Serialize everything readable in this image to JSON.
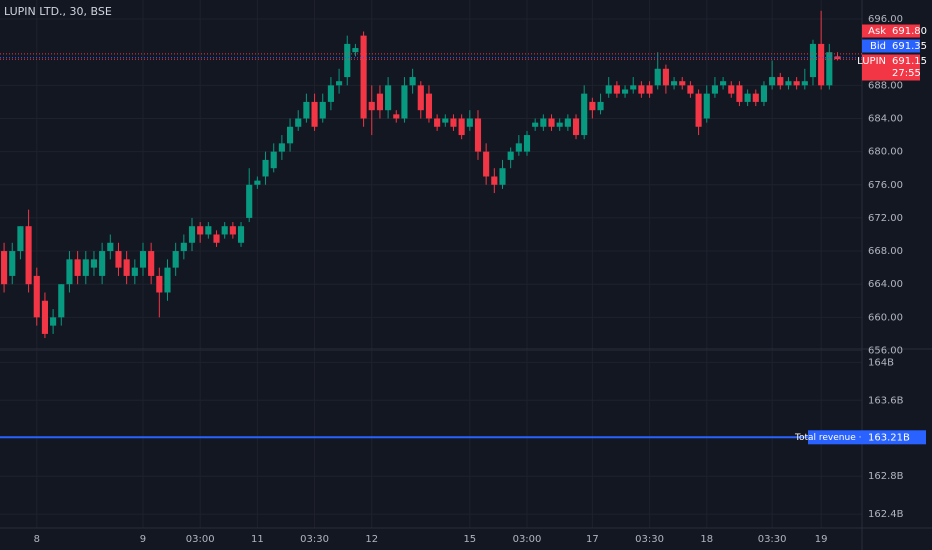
{
  "chart_data": {
    "type": "candlestick",
    "title": "LUPIN LTD., 30, BSE",
    "up_color": "#089981",
    "down_color": "#f23645",
    "grid": true,
    "xlim": [
      -0.5,
      105
    ],
    "xticks": [
      {
        "value": 4,
        "label": "8"
      },
      {
        "value": 17,
        "label": "9"
      },
      {
        "value": 24,
        "label": "03:00"
      },
      {
        "value": 31,
        "label": "11"
      },
      {
        "value": 38,
        "label": "03:30"
      },
      {
        "value": 45,
        "label": "12"
      },
      {
        "value": 57,
        "label": "15"
      },
      {
        "value": 64,
        "label": "03:00"
      },
      {
        "value": 72,
        "label": "17"
      },
      {
        "value": 79,
        "label": "03:30"
      },
      {
        "value": 86,
        "label": "18"
      },
      {
        "value": 94,
        "label": "03:30"
      },
      {
        "value": 100,
        "label": "19"
      }
    ],
    "ylim": [
      656.3,
      698.3
    ],
    "yticks": [
      {
        "value": 656,
        "label": "656.00"
      },
      {
        "value": 660,
        "label": "660.00"
      },
      {
        "value": 664,
        "label": "664.00"
      },
      {
        "value": 668,
        "label": "668.00"
      },
      {
        "value": 672,
        "label": "672.00"
      },
      {
        "value": 676,
        "label": "676.00"
      },
      {
        "value": 680,
        "label": "680.00"
      },
      {
        "value": 684,
        "label": "684.00"
      },
      {
        "value": 688,
        "label": "688.00"
      },
      {
        "value": 696,
        "label": "696.00"
      }
    ],
    "open": [
      668,
      665,
      668,
      671,
      665,
      662,
      659,
      660,
      664,
      667,
      665,
      666,
      665,
      668,
      668,
      667,
      665,
      666,
      668,
      665,
      663,
      666,
      668,
      669,
      671,
      670,
      670,
      670,
      671,
      669,
      672,
      676,
      677,
      678,
      680,
      681,
      683,
      684,
      686,
      684,
      686,
      688,
      689,
      692,
      694,
      686,
      687,
      685,
      684.5,
      684,
      688,
      688,
      687,
      684,
      683.5,
      684,
      684,
      683,
      684,
      680,
      677,
      676,
      679,
      680,
      680,
      683,
      683,
      684,
      683,
      683,
      684,
      682,
      686,
      685,
      687,
      688,
      687,
      687.5,
      688,
      688,
      688,
      690,
      688,
      688.5,
      688,
      687,
      684,
      687,
      688,
      688,
      688,
      686,
      687,
      686,
      688,
      689,
      688,
      688.5,
      688,
      689,
      693,
      688,
      691.5
    ],
    "high": [
      669,
      669,
      671,
      673,
      666,
      663,
      661,
      664,
      668,
      668,
      668,
      668,
      669,
      670,
      669,
      668,
      667,
      669,
      669,
      666,
      667,
      669,
      670,
      672,
      671.5,
      671.5,
      670.5,
      671.5,
      671.5,
      671.5,
      678,
      677,
      680,
      681,
      682,
      684,
      685,
      687,
      687,
      687,
      689,
      690,
      694,
      693,
      694.5,
      688,
      688,
      689,
      685,
      689,
      690,
      688.5,
      688,
      684.5,
      684.5,
      684.5,
      684.5,
      685,
      685,
      681,
      678,
      679,
      680.5,
      682,
      682.5,
      684,
      684.5,
      684.5,
      684,
      684.5,
      684.5,
      688,
      686.5,
      687,
      689,
      688.5,
      688,
      689,
      688.5,
      688.5,
      692,
      690.5,
      689,
      689,
      688.5,
      687.5,
      688,
      689,
      689,
      688.5,
      688.5,
      687.5,
      687.5,
      688.5,
      691,
      689.5,
      689,
      689,
      690,
      693.5,
      697,
      693,
      692
    ],
    "low": [
      663,
      664,
      667,
      663,
      659,
      657.5,
      658,
      659,
      663,
      664,
      664,
      665,
      664,
      667,
      665,
      664,
      664,
      665,
      664,
      660,
      662,
      665,
      667,
      668,
      669,
      669.5,
      668.5,
      669.5,
      669.5,
      668.5,
      671.5,
      675.5,
      676,
      677.5,
      679,
      680,
      682.5,
      683.5,
      682.5,
      683.5,
      685,
      687,
      688,
      691.5,
      683,
      682,
      684,
      684,
      683.5,
      683.5,
      687,
      684,
      683.5,
      682.5,
      683,
      682.5,
      681.5,
      682.5,
      679,
      676,
      675,
      675.5,
      678,
      679.5,
      679.5,
      682.5,
      682.5,
      682.5,
      682.5,
      682.5,
      681.5,
      681.5,
      684,
      684.5,
      686.5,
      686.5,
      686.5,
      687,
      686.5,
      686.5,
      687.5,
      687,
      687.5,
      687.5,
      686.5,
      682,
      683.5,
      686.5,
      687.5,
      686.5,
      685.5,
      685.5,
      685.5,
      685.5,
      687.5,
      687.5,
      687.5,
      687.5,
      687.5,
      688,
      687.5,
      687.5,
      691
    ],
    "close": [
      664,
      668,
      671,
      664,
      660,
      658,
      660,
      664,
      667,
      665,
      667,
      667,
      668,
      669,
      666,
      665,
      666,
      668,
      665,
      663,
      666,
      668,
      669,
      671,
      670,
      671,
      669,
      671,
      670,
      671,
      676,
      676.5,
      679,
      680,
      681,
      683,
      684,
      686,
      683,
      686,
      688,
      688.5,
      693,
      692.5,
      684,
      685,
      685,
      688,
      684,
      688,
      689,
      685,
      684,
      683,
      684,
      683,
      682,
      684,
      680,
      677,
      676,
      678,
      680,
      681,
      682,
      683.5,
      684,
      683,
      683.5,
      684,
      682,
      687,
      685,
      686,
      688,
      687,
      687.5,
      688,
      687,
      687,
      690,
      688,
      688.5,
      688,
      687,
      683,
      687,
      688,
      688.5,
      687,
      686,
      687,
      686,
      688,
      689,
      688,
      688.5,
      688,
      688.5,
      693,
      688,
      692,
      691.15
    ],
    "quotes": [
      {
        "name": "Ask",
        "value": 691.8,
        "label": "691.80",
        "color": "#f23645"
      },
      {
        "name": "Bid",
        "value": 691.35,
        "label": "691.35",
        "color": "#2962ff"
      },
      {
        "name": "LUPIN",
        "value": 691.15,
        "label": "691.15",
        "color": "#f23645",
        "countdown": "27:55"
      }
    ],
    "revenue": {
      "name": "Total revenue · FY",
      "value": 163210000000,
      "label": "163.21B",
      "color": "#2962ff",
      "y2lim": [
        162170000000,
        164130000000
      ],
      "y2ticks": [
        {
          "value": 164000000000,
          "label": "164B"
        },
        {
          "value": 163600000000,
          "label": "163.6B"
        },
        {
          "value": 162800000000,
          "label": "162.8B"
        },
        {
          "value": 162400000000,
          "label": "162.4B"
        }
      ]
    }
  }
}
